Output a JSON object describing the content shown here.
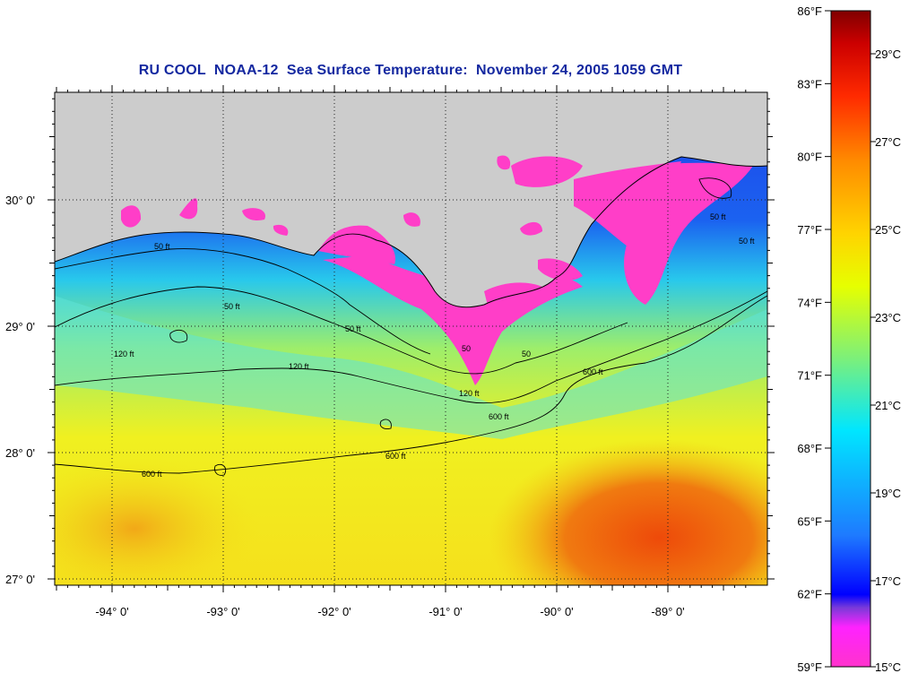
{
  "title": "RU COOL  NOAA-12  Sea Surface Temperature:  November 24, 2005 1059 GMT",
  "map": {
    "lat_ticks": [
      {
        "value": 30,
        "label": "30° 0'"
      },
      {
        "value": 29,
        "label": "29° 0'"
      },
      {
        "value": 28,
        "label": "28° 0'"
      },
      {
        "value": 27,
        "label": "27° 0'"
      }
    ],
    "lon_ticks": [
      {
        "value": -94,
        "label": "-94° 0'"
      },
      {
        "value": -93,
        "label": "-93° 0'"
      },
      {
        "value": -92,
        "label": "-92° 0'"
      },
      {
        "value": -91,
        "label": "-91° 0'"
      },
      {
        "value": -90,
        "label": "-90° 0'"
      },
      {
        "value": -89,
        "label": "-89° 0'"
      }
    ],
    "contour_labels": [
      {
        "text": "50 ft"
      },
      {
        "text": "50 ft"
      },
      {
        "text": "50 ft"
      },
      {
        "text": "120 ft"
      },
      {
        "text": "120 ft"
      },
      {
        "text": "120 ft"
      },
      {
        "text": "600 ft"
      },
      {
        "text": "600 ft"
      },
      {
        "text": "600 ft"
      },
      {
        "text": "600 ft"
      },
      {
        "text": "50"
      },
      {
        "text": "50"
      },
      {
        "text": "50 ft"
      },
      {
        "text": "50 ft"
      }
    ],
    "land_color": "#cccccc",
    "colors": {
      "cold": "#ff3ec8",
      "blue": "#1b3cf0",
      "cyan": "#26d9ee",
      "green": "#8ef07a",
      "yellow": "#f2f21e",
      "orange": "#f29a10",
      "red": "#ee4a0a"
    }
  },
  "colorbar": {
    "fahrenheit_labels": [
      "86°F",
      "83°F",
      "80°F",
      "77°F",
      "74°F",
      "71°F",
      "68°F",
      "65°F",
      "62°F",
      "59°F"
    ],
    "celsius_labels": [
      "29°C",
      "27°C",
      "25°C",
      "23°C",
      "21°C",
      "19°C",
      "17°C",
      "15°C"
    ],
    "stops": [
      "#ff33cc",
      "#ff22ff",
      "#7a3ad9",
      "#0000ff",
      "#1e7aff",
      "#00e6ff",
      "#7cf07a",
      "#e6ff00",
      "#ffd400",
      "#ff8c00",
      "#ff2a00",
      "#cc0000",
      "#800000"
    ]
  }
}
